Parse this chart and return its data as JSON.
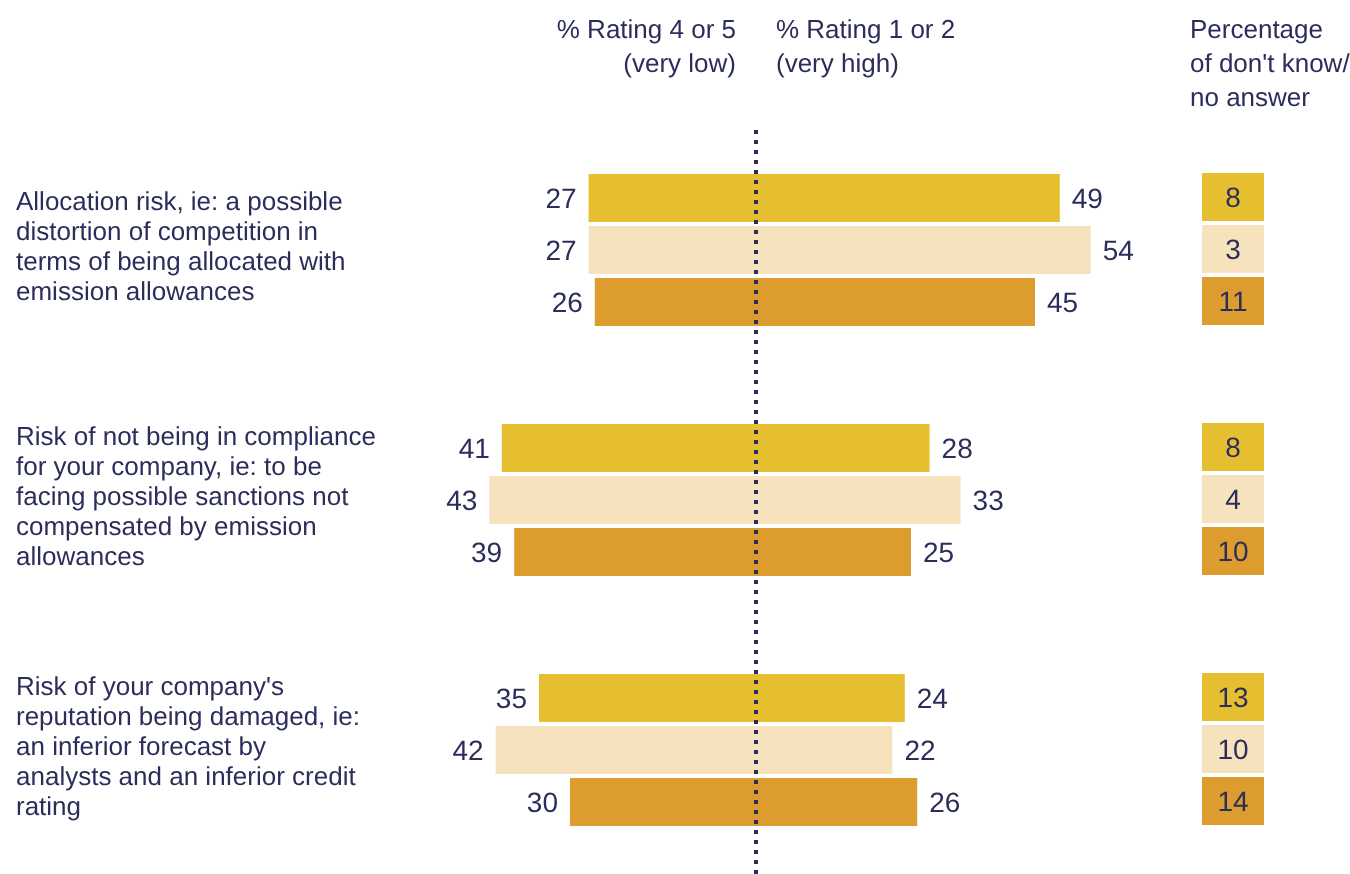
{
  "chart_data": [
    {
      "type": "bar",
      "orientation": "horizontal",
      "tick_labels": "y",
      "title": "% Rating 4 or 5 (very low)",
      "categories": [
        "Allocation risk, ie: a possible distortion of competition in terms of being allocated with emission allowances",
        "Risk of not being in compliance for your company, ie: to be facing possible sanctions not compensated by emission allowances",
        "Risk of your company's reputation being damaged, ie: an inferior forecast by analysts and an inferior credit rating"
      ],
      "data_labels": true,
      "ref_lines": [
        {
          "axis": "x",
          "value": 0,
          "line_style": "dotted",
          "color": "#2b2d5a"
        }
      ],
      "series": [
        {
          "color": "#e6bf30",
          "values": [
            27,
            41,
            35
          ]
        },
        {
          "color": "#f6e2bd",
          "values": [
            27,
            43,
            42
          ]
        },
        {
          "color": "#dc9c2e",
          "values": [
            26,
            39,
            30
          ]
        }
      ]
    },
    {
      "type": "bar",
      "orientation": "horizontal",
      "tick_labels": false,
      "title": "% Rating 1 or 2 (very high)",
      "categories": [
        null,
        null,
        null
      ],
      "data_labels": true,
      "ref_lines": [
        {
          "axis": "x",
          "value": 0,
          "line_style": "dotted",
          "color": "#2b2d5a"
        }
      ],
      "series": [
        {
          "color": "#e6bf30",
          "values": [
            49,
            28,
            24
          ]
        },
        {
          "color": "#f6e2bd",
          "values": [
            54,
            33,
            22
          ]
        },
        {
          "color": "#dc9c2e",
          "values": [
            45,
            25,
            26
          ]
        }
      ]
    },
    {
      "type": "other",
      "title": "Percentage of don't know/ no answer",
      "data_labels": true,
      "values": [
        8,
        3,
        11,
        8,
        4,
        10,
        13,
        10,
        14
      ],
      "colors": [
        "#e6bf30",
        "#f6e2bd",
        "#dc9c2e",
        "#e6bf30",
        "#f6e2bd",
        "#dc9c2e",
        "#e6bf30",
        "#f6e2bd",
        "#dc9c2e"
      ]
    }
  ]
}
